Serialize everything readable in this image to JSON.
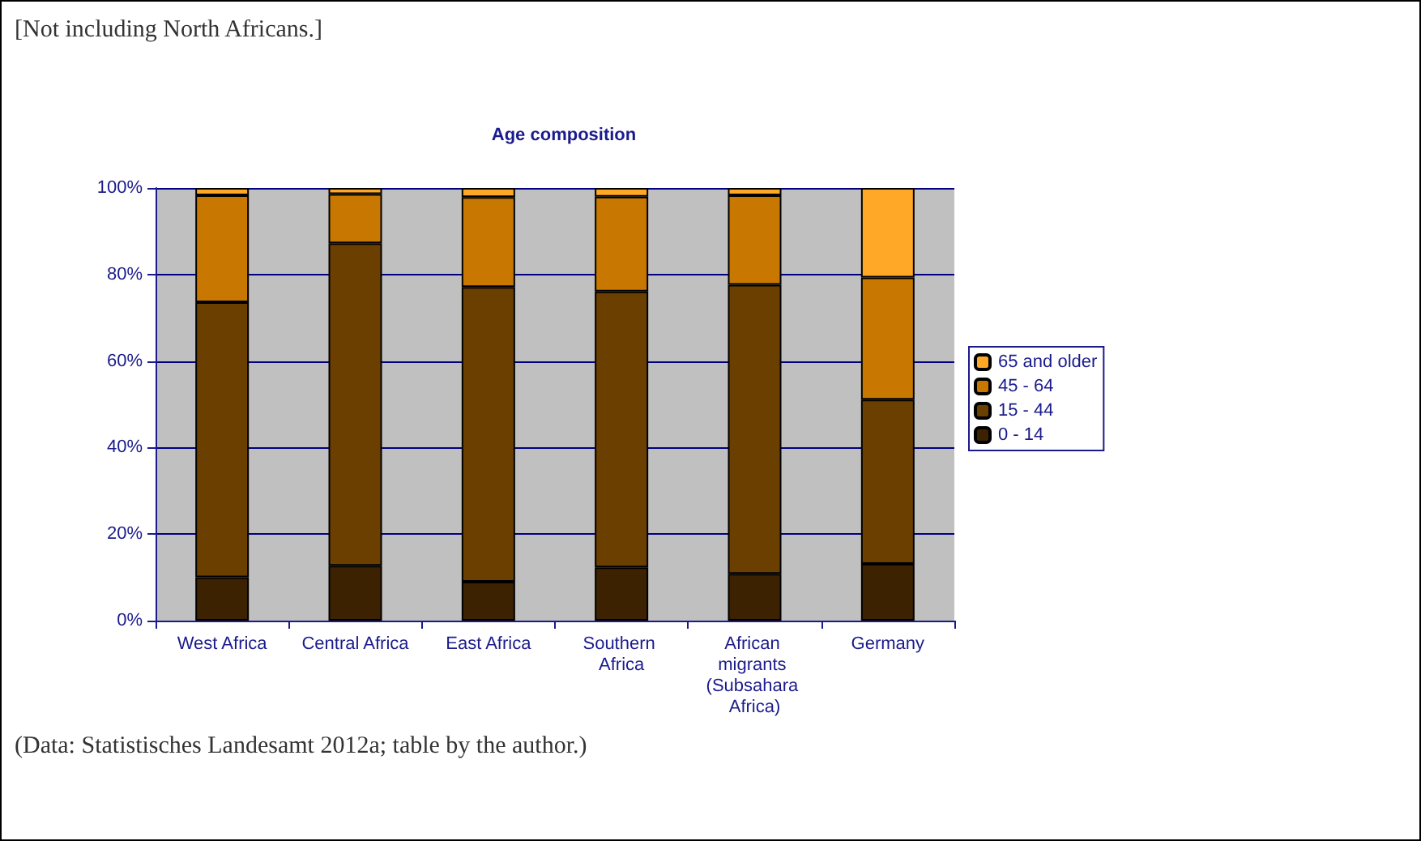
{
  "chart_data": {
    "type": "bar",
    "stacked": true,
    "title": "Age composition",
    "categories": [
      "West Africa",
      "Central Africa",
      "East Africa",
      "Southern Africa",
      "African migrants (Subsahara Africa)",
      "Germany"
    ],
    "series": [
      {
        "name": "0 - 14",
        "color": "#3c2200",
        "values": [
          10.0,
          12.7,
          9.0,
          12.3,
          10.8,
          13.1
        ]
      },
      {
        "name": "15 - 44",
        "color": "#6b3f00",
        "values": [
          63.6,
          74.5,
          68.1,
          63.8,
          66.8,
          38.0
        ]
      },
      {
        "name": "45 - 64",
        "color": "#c87800",
        "values": [
          24.7,
          11.4,
          20.8,
          21.9,
          20.7,
          28.2
        ]
      },
      {
        "name": "65 and older",
        "color": "#ffa726",
        "values": [
          1.7,
          1.4,
          2.1,
          2.0,
          1.7,
          20.7
        ]
      }
    ],
    "ylim": [
      0,
      100
    ],
    "yticks": [
      {
        "value": 0,
        "label": "0%"
      },
      {
        "value": 20,
        "label": "20%"
      },
      {
        "value": 40,
        "label": "40%"
      },
      {
        "value": 60,
        "label": "60%"
      },
      {
        "value": 80,
        "label": "80%"
      },
      {
        "value": 100,
        "label": "100%"
      }
    ],
    "grid": "y",
    "legend": "right",
    "annotations": [
      "[Not including North Africans.]",
      "(Data: Statistisches Landesamt 2012a; table by the author.)"
    ]
  }
}
